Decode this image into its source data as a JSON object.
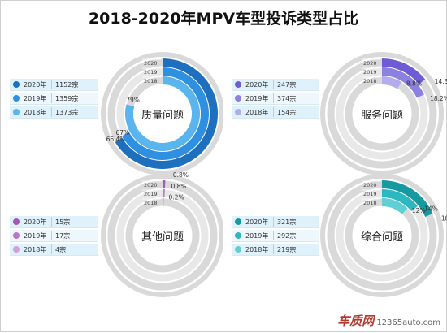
{
  "title": "2018-2020年MPV车型投诉类型占比",
  "colors": {
    "track": "#d9d9d9",
    "track_light": "#e8e8e8"
  },
  "chart_data": [
    {
      "type": "pie",
      "title": "质量问题",
      "ring_years": [
        "2020",
        "2019",
        "2018"
      ],
      "series": [
        {
          "year": "2020年",
          "count": "1152宗",
          "percent": 66.4,
          "label": "66.4%",
          "color": "#1f6fbf"
        },
        {
          "year": "2019年",
          "count": "1359宗",
          "percent": 67,
          "label": "67%",
          "color": "#2f8fe0"
        },
        {
          "year": "2018年",
          "count": "1373宗",
          "percent": 79,
          "label": "79%",
          "color": "#5ab4ee"
        }
      ]
    },
    {
      "type": "pie",
      "title": "服务问题",
      "ring_years": [
        "2020",
        "2019",
        "2018"
      ],
      "series": [
        {
          "year": "2020年",
          "count": "247宗",
          "percent": 14.3,
          "label": "14.3%",
          "color": "#6f5bd6"
        },
        {
          "year": "2019年",
          "count": "374宗",
          "percent": 18.2,
          "label": "18.2%",
          "color": "#8c80e0"
        },
        {
          "year": "2018年",
          "count": "154宗",
          "percent": 8.8,
          "label": "8.8%",
          "color": "#b3abec"
        }
      ]
    },
    {
      "type": "pie",
      "title": "其他问题",
      "ring_years": [
        "2020",
        "2019",
        "2018"
      ],
      "series": [
        {
          "year": "2020年",
          "count": "15宗",
          "percent": 0.8,
          "label": "0.8%",
          "color": "#a558b8"
        },
        {
          "year": "2019年",
          "count": "17宗",
          "percent": 0.8,
          "label": "0.8%",
          "color": "#b876c8"
        },
        {
          "year": "2018年",
          "count": "4宗",
          "percent": 0.2,
          "label": "0.2%",
          "color": "#cfa0dc"
        }
      ]
    },
    {
      "type": "pie",
      "title": "综合问题",
      "ring_years": [
        "2020",
        "2019",
        "2018"
      ],
      "series": [
        {
          "year": "2020年",
          "count": "321宗",
          "percent": 18.5,
          "label": "18.5%",
          "color": "#169aa0"
        },
        {
          "year": "2019年",
          "count": "292宗",
          "percent": 14,
          "label": "14%",
          "color": "#2bb8c0"
        },
        {
          "year": "2018年",
          "count": "219宗",
          "percent": 12,
          "label": "12%",
          "color": "#5fcfd6"
        }
      ]
    }
  ],
  "watermark": {
    "logo": "车质网",
    "url": "12365auto.com"
  }
}
